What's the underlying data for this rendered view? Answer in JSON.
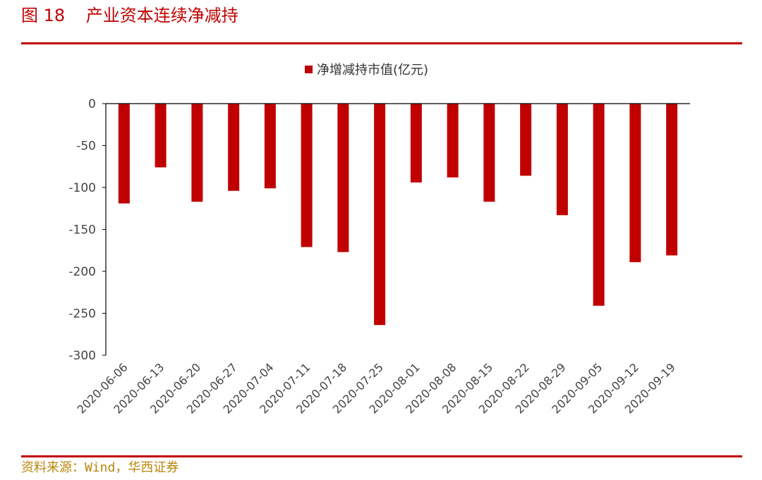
{
  "figure": {
    "label": "图 18",
    "title": "产业资本连续净减持",
    "source": "资料来源：Wind，华西证券"
  },
  "colors": {
    "accent": "#c00000",
    "bar": "#c00000",
    "source_text": "#b8860b"
  },
  "chart_data": {
    "type": "bar",
    "categories": [
      "2020-06-06",
      "2020-06-13",
      "2020-06-20",
      "2020-06-27",
      "2020-07-04",
      "2020-07-11",
      "2020-07-18",
      "2020-07-25",
      "2020-08-01",
      "2020-08-08",
      "2020-08-15",
      "2020-08-22",
      "2020-08-29",
      "2020-09-05",
      "2020-09-12",
      "2020-09-19"
    ],
    "series": [
      {
        "name": "净增减持市值(亿元)",
        "values": [
          -119,
          -76,
          -117,
          -104,
          -101,
          -171,
          -177,
          -264,
          -94,
          -88,
          -117,
          -86,
          -133,
          -241,
          -189,
          -181
        ]
      }
    ],
    "ylim": [
      -300,
      0
    ],
    "yticks": [
      0,
      -50,
      -100,
      -150,
      -200,
      -250,
      -300
    ],
    "xlabel": "",
    "ylabel": "",
    "legend": "top-center",
    "grid": false
  }
}
